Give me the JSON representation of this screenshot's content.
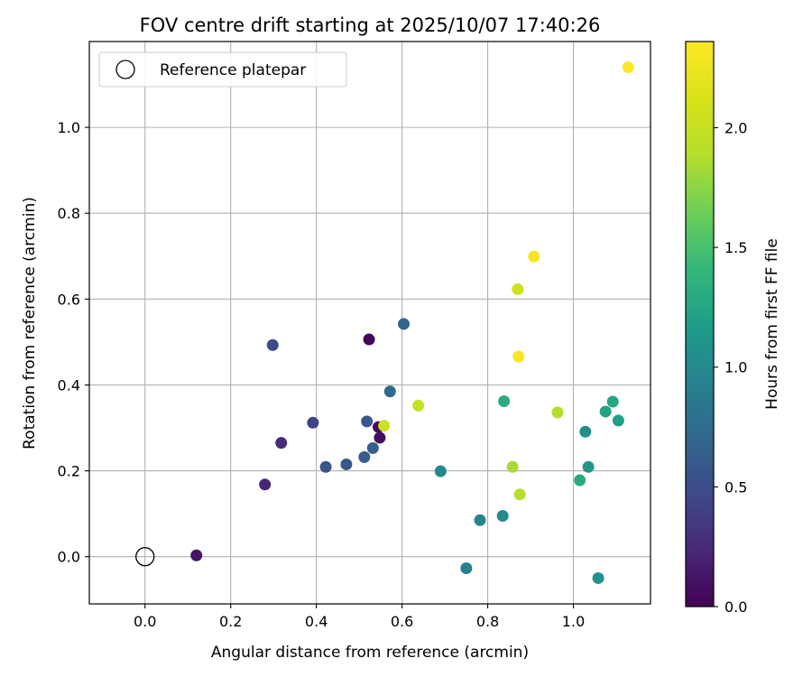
{
  "chart_data": {
    "type": "scatter",
    "title": "FOV centre drift starting at 2025/10/07 17:40:26",
    "xlabel": "Angular distance from reference (arcmin)",
    "ylabel": "Rotation from reference (arcmin)",
    "xlim": [
      -0.13,
      1.18
    ],
    "ylim": [
      -0.11,
      1.2
    ],
    "xticks": [
      "0.0",
      "0.2",
      "0.4",
      "0.6",
      "0.8",
      "1.0"
    ],
    "yticks": [
      "0.0",
      "0.2",
      "0.4",
      "0.6",
      "0.8",
      "1.0"
    ],
    "grid": true,
    "legend": {
      "position": "upper-left",
      "entries": [
        "Reference platepar"
      ]
    },
    "reference_point": {
      "x": 0.0,
      "y": 0.0,
      "label": "Reference platepar"
    },
    "colorbar": {
      "label": "Hours from first FF file",
      "colormap": "viridis",
      "range": [
        0.0,
        2.36
      ],
      "ticks": [
        "0.0",
        "0.5",
        "1.0",
        "1.5",
        "2.0"
      ]
    },
    "points": [
      {
        "x": 0.12,
        "y": 0.003,
        "hours": 0.12
      },
      {
        "x": 0.523,
        "y": 0.506,
        "hours": 0.02
      },
      {
        "x": 0.545,
        "y": 0.302,
        "hours": 0.05
      },
      {
        "x": 0.548,
        "y": 0.277,
        "hours": 0.08
      },
      {
        "x": 0.28,
        "y": 0.168,
        "hours": 0.22
      },
      {
        "x": 0.318,
        "y": 0.265,
        "hours": 0.25
      },
      {
        "x": 0.392,
        "y": 0.312,
        "hours": 0.42
      },
      {
        "x": 0.298,
        "y": 0.493,
        "hours": 0.48
      },
      {
        "x": 0.422,
        "y": 0.209,
        "hours": 0.55
      },
      {
        "x": 0.47,
        "y": 0.215,
        "hours": 0.6
      },
      {
        "x": 0.512,
        "y": 0.232,
        "hours": 0.62
      },
      {
        "x": 0.532,
        "y": 0.253,
        "hours": 0.64
      },
      {
        "x": 0.518,
        "y": 0.315,
        "hours": 0.58
      },
      {
        "x": 0.604,
        "y": 0.542,
        "hours": 0.68
      },
      {
        "x": 0.572,
        "y": 0.385,
        "hours": 0.72
      },
      {
        "x": 0.75,
        "y": -0.027,
        "hours": 0.92
      },
      {
        "x": 0.782,
        "y": 0.085,
        "hours": 0.95
      },
      {
        "x": 0.69,
        "y": 0.199,
        "hours": 0.98
      },
      {
        "x": 0.835,
        "y": 0.095,
        "hours": 1.02
      },
      {
        "x": 1.028,
        "y": 0.291,
        "hours": 1.05
      },
      {
        "x": 1.058,
        "y": -0.05,
        "hours": 1.08
      },
      {
        "x": 1.035,
        "y": 0.209,
        "hours": 1.12
      },
      {
        "x": 1.105,
        "y": 0.317,
        "hours": 1.18
      },
      {
        "x": 1.075,
        "y": 0.338,
        "hours": 1.22
      },
      {
        "x": 1.092,
        "y": 0.361,
        "hours": 1.25
      },
      {
        "x": 1.015,
        "y": 0.178,
        "hours": 1.28
      },
      {
        "x": 0.838,
        "y": 0.362,
        "hours": 1.3
      },
      {
        "x": 0.858,
        "y": 0.209,
        "hours": 1.85
      },
      {
        "x": 0.875,
        "y": 0.145,
        "hours": 1.9
      },
      {
        "x": 0.963,
        "y": 0.336,
        "hours": 1.88
      },
      {
        "x": 0.638,
        "y": 0.352,
        "hours": 1.98
      },
      {
        "x": 0.558,
        "y": 0.305,
        "hours": 2.05
      },
      {
        "x": 0.87,
        "y": 0.623,
        "hours": 2.05
      },
      {
        "x": 0.872,
        "y": 0.466,
        "hours": 2.3
      },
      {
        "x": 0.908,
        "y": 0.699,
        "hours": 2.32
      },
      {
        "x": 1.128,
        "y": 1.14,
        "hours": 2.36
      }
    ]
  }
}
